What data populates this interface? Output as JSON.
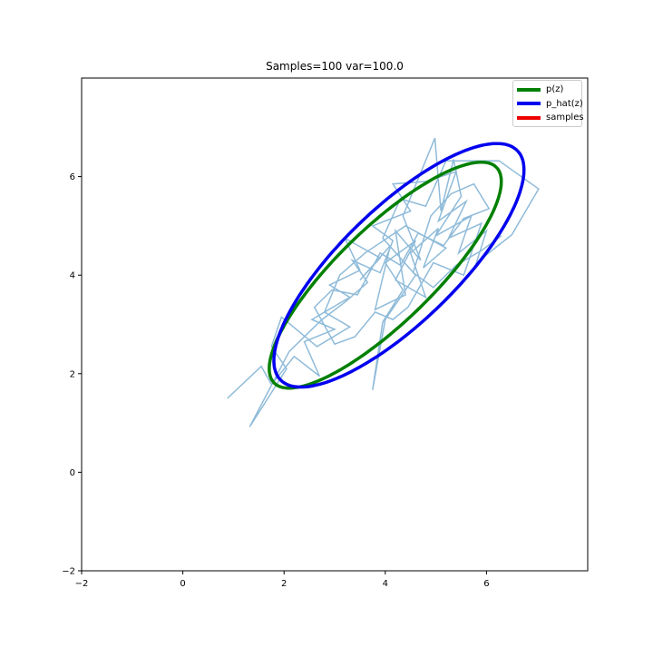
{
  "chart_data": {
    "type": "line",
    "title": "Samples=100 var=100.0",
    "xlabel": "",
    "ylabel": "",
    "xlim": [
      -2,
      8
    ],
    "ylim": [
      -2,
      8
    ],
    "xticks": [
      -2,
      0,
      2,
      4,
      6
    ],
    "yticks": [
      -2,
      0,
      2,
      4,
      6
    ],
    "grid": false,
    "legend_position": "top-right",
    "legend": [
      {
        "label": "p(z)",
        "color": "#008000"
      },
      {
        "label": "p_hat(z)",
        "color": "#0000ee"
      },
      {
        "label": "samples",
        "color": "#ee0000"
      }
    ],
    "ellipses": [
      {
        "name": "p(z)",
        "color": "#008000",
        "center": [
          4.0,
          4.0
        ],
        "semi_axes": [
          3.1,
          0.95
        ],
        "angle_deg": 45
      },
      {
        "name": "p_hat(z)",
        "color": "#0000ee",
        "center": [
          4.27,
          4.2
        ],
        "semi_axes": [
          3.3,
          1.15
        ],
        "angle_deg": 45
      }
    ],
    "sample_path": {
      "color": "#1f77b4",
      "points": [
        [
          0.88,
          1.5
        ],
        [
          1.55,
          2.15
        ],
        [
          1.75,
          1.78
        ],
        [
          2.2,
          2.35
        ],
        [
          2.7,
          1.95
        ],
        [
          2.4,
          2.65
        ],
        [
          3.0,
          2.9
        ],
        [
          2.55,
          3.1
        ],
        [
          3.3,
          3.55
        ],
        [
          2.9,
          3.8
        ],
        [
          3.5,
          4.1
        ],
        [
          3.2,
          4.75
        ],
        [
          3.9,
          4.35
        ],
        [
          3.5,
          3.9
        ],
        [
          4.1,
          4.6
        ],
        [
          3.8,
          3.3
        ],
        [
          4.4,
          3.6
        ],
        [
          4.2,
          4.9
        ],
        [
          4.7,
          4.3
        ],
        [
          4.35,
          5.2
        ],
        [
          4.98,
          6.78
        ],
        [
          5.1,
          5.3
        ],
        [
          5.35,
          6.35
        ],
        [
          5.5,
          5.6
        ],
        [
          5.0,
          4.8
        ],
        [
          5.7,
          5.2
        ],
        [
          5.45,
          4.45
        ],
        [
          6.0,
          4.9
        ],
        [
          5.8,
          4.25
        ],
        [
          6.5,
          4.82
        ],
        [
          7.03,
          5.75
        ],
        [
          6.25,
          6.32
        ],
        [
          5.2,
          6.32
        ],
        [
          4.8,
          5.4
        ],
        [
          4.3,
          5.55
        ],
        [
          3.95,
          4.75
        ],
        [
          4.6,
          4.0
        ],
        [
          4.0,
          3.1
        ],
        [
          3.75,
          1.67
        ],
        [
          3.95,
          3.05
        ],
        [
          4.35,
          3.7
        ],
        [
          4.0,
          4.25
        ],
        [
          4.6,
          4.7
        ],
        [
          4.2,
          3.9
        ],
        [
          4.8,
          3.55
        ],
        [
          4.5,
          4.45
        ],
        [
          5.05,
          4.95
        ],
        [
          4.75,
          4.15
        ],
        [
          5.2,
          4.55
        ],
        [
          4.4,
          5.0
        ],
        [
          3.6,
          4.45
        ],
        [
          3.1,
          4.0
        ],
        [
          2.8,
          3.25
        ],
        [
          3.3,
          2.95
        ],
        [
          2.65,
          2.55
        ],
        [
          2.3,
          2.85
        ],
        [
          1.95,
          3.15
        ],
        [
          1.75,
          2.55
        ],
        [
          2.05,
          2.1
        ],
        [
          1.32,
          0.92
        ],
        [
          2.1,
          2.45
        ],
        [
          2.75,
          3.1
        ],
        [
          3.2,
          3.45
        ],
        [
          3.65,
          3.85
        ],
        [
          3.35,
          4.3
        ],
        [
          3.9,
          4.05
        ],
        [
          4.15,
          4.7
        ],
        [
          3.75,
          5.0
        ],
        [
          4.5,
          5.3
        ],
        [
          4.15,
          5.85
        ],
        [
          4.8,
          5.9
        ],
        [
          5.4,
          6.1
        ],
        [
          5.05,
          5.1
        ],
        [
          5.6,
          5.5
        ],
        [
          5.25,
          4.75
        ],
        [
          5.9,
          5.05
        ],
        [
          5.55,
          4.0
        ],
        [
          4.95,
          4.25
        ],
        [
          4.45,
          3.35
        ],
        [
          4.15,
          3.1
        ],
        [
          3.8,
          3.25
        ],
        [
          3.4,
          2.75
        ],
        [
          3.0,
          2.6
        ],
        [
          2.6,
          3.35
        ],
        [
          2.95,
          3.7
        ],
        [
          3.45,
          3.6
        ],
        [
          3.9,
          4.45
        ],
        [
          4.3,
          4.2
        ],
        [
          4.65,
          4.85
        ],
        [
          5.15,
          4.6
        ],
        [
          5.55,
          5.15
        ],
        [
          6.05,
          5.35
        ],
        [
          5.75,
          5.85
        ],
        [
          5.3,
          5.65
        ],
        [
          4.9,
          5.2
        ],
        [
          4.55,
          4.05
        ],
        [
          4.95,
          3.75
        ],
        [
          5.4,
          4.2
        ],
        [
          5.9,
          4.5
        ],
        [
          6.3,
          4.8
        ]
      ]
    }
  }
}
